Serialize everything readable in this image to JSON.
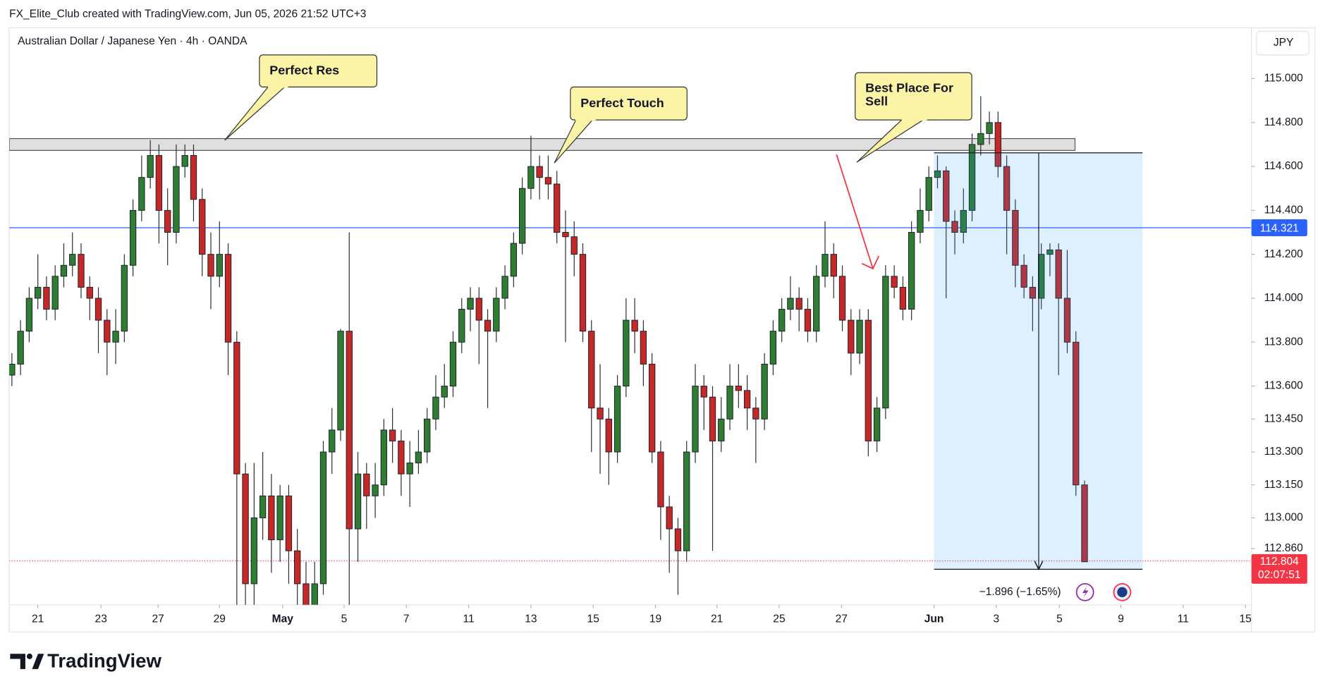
{
  "header": "FX_Elite_Club created with TradingView.com, Jun 05, 2026 21:52 UTC+3",
  "brand": "TradingView",
  "chart_data": {
    "type": "candlestick",
    "title": "Australian Dollar / Japanese Yen · 4h · OANDA",
    "currency": "JPY",
    "up_color": "#2e7d32",
    "down_color": "#c62828",
    "grid": false,
    "open": [
      113.65,
      113.7,
      113.85,
      114.0,
      114.05,
      113.95,
      114.1,
      114.15,
      114.2,
      114.05,
      114.0,
      113.9,
      113.8,
      113.85,
      114.15,
      114.4,
      114.55,
      114.65,
      114.4,
      114.3,
      114.6,
      114.65,
      114.45,
      114.2,
      114.1,
      114.2,
      113.8,
      113.2,
      112.7,
      113.0,
      113.1,
      112.9,
      113.1,
      112.85,
      112.7,
      112.6,
      112.7,
      113.3,
      113.4,
      113.85,
      112.95,
      113.2,
      113.1,
      113.15,
      113.4,
      113.35,
      113.2,
      113.25,
      113.3,
      113.45,
      113.55,
      113.6,
      113.8,
      113.95,
      114.0,
      113.9,
      113.85,
      114.0,
      114.1,
      114.25,
      114.5,
      114.6,
      114.55,
      114.52,
      114.3,
      114.28,
      114.2,
      113.85,
      113.5,
      113.45,
      113.3,
      113.6,
      113.9,
      113.85,
      113.7,
      113.3,
      113.05,
      112.95,
      112.85,
      113.3,
      113.6,
      113.55,
      113.35,
      113.45,
      113.6,
      113.58,
      113.5,
      113.45,
      113.7,
      113.85,
      113.95,
      114.0,
      113.95,
      113.85,
      114.1,
      114.2,
      114.1,
      113.9,
      113.75,
      113.9,
      113.35,
      113.5,
      114.1,
      114.05,
      113.95,
      114.3,
      114.4,
      114.55,
      114.58,
      114.35,
      114.3,
      114.4,
      114.7,
      114.75,
      114.8,
      114.6,
      114.4,
      114.15,
      114.05,
      114.0,
      114.2,
      114.22,
      114.0,
      113.8,
      113.15
    ],
    "high": [
      113.75,
      113.9,
      114.05,
      114.2,
      114.1,
      114.15,
      114.25,
      114.3,
      114.25,
      114.1,
      114.05,
      113.95,
      113.95,
      114.2,
      114.45,
      114.65,
      114.72,
      114.7,
      114.5,
      114.7,
      114.7,
      114.7,
      114.5,
      114.3,
      114.35,
      114.25,
      113.85,
      113.25,
      113.25,
      113.3,
      113.2,
      113.15,
      113.15,
      112.95,
      112.8,
      112.8,
      113.35,
      113.5,
      113.86,
      114.3,
      113.3,
      113.25,
      113.25,
      113.45,
      113.5,
      113.4,
      113.35,
      113.4,
      113.5,
      113.65,
      113.7,
      113.85,
      114.0,
      114.05,
      114.05,
      113.95,
      114.05,
      114.15,
      114.3,
      114.55,
      114.74,
      114.65,
      114.65,
      114.58,
      114.4,
      114.35,
      114.25,
      113.9,
      113.7,
      113.5,
      113.65,
      114.0,
      114.0,
      113.9,
      113.75,
      113.35,
      113.1,
      113.0,
      113.35,
      113.7,
      113.65,
      113.6,
      113.55,
      113.7,
      113.7,
      113.65,
      113.55,
      113.75,
      113.9,
      114.0,
      114.1,
      114.05,
      114.0,
      114.15,
      114.35,
      114.25,
      114.15,
      113.95,
      113.95,
      113.95,
      113.55,
      114.15,
      114.15,
      114.1,
      114.35,
      114.5,
      114.6,
      114.65,
      114.6,
      114.4,
      114.5,
      114.75,
      114.92,
      114.85,
      114.85,
      114.65,
      114.45,
      114.2,
      114.1,
      114.25,
      114.25,
      114.25,
      114.22,
      113.85,
      113.17
    ],
    "low": [
      113.6,
      113.65,
      113.8,
      113.95,
      113.9,
      113.9,
      114.05,
      114.1,
      114.0,
      113.9,
      113.75,
      113.65,
      113.7,
      113.8,
      114.1,
      114.35,
      114.5,
      114.25,
      114.15,
      114.25,
      114.55,
      114.35,
      114.1,
      113.95,
      114.05,
      113.65,
      112.5,
      112.5,
      112.6,
      112.9,
      112.75,
      112.8,
      112.7,
      112.55,
      112.5,
      112.5,
      112.65,
      113.2,
      113.35,
      112.6,
      112.8,
      112.95,
      113.0,
      113.1,
      113.25,
      113.1,
      113.05,
      113.2,
      113.25,
      113.4,
      113.5,
      113.55,
      113.75,
      113.85,
      113.7,
      113.5,
      113.8,
      113.95,
      114.05,
      114.2,
      114.45,
      114.45,
      114.45,
      114.25,
      113.8,
      114.1,
      113.8,
      113.3,
      113.2,
      113.15,
      113.25,
      113.55,
      113.75,
      113.6,
      113.25,
      112.9,
      112.75,
      112.65,
      112.8,
      113.25,
      113.4,
      112.85,
      113.3,
      113.4,
      113.5,
      113.4,
      113.25,
      113.4,
      113.65,
      113.8,
      113.9,
      113.85,
      113.8,
      113.8,
      114.05,
      114.0,
      113.85,
      113.65,
      113.7,
      113.28,
      113.3,
      113.45,
      114.0,
      113.9,
      113.9,
      114.25,
      114.35,
      114.5,
      114.0,
      114.2,
      114.25,
      114.35,
      114.65,
      114.7,
      114.55,
      114.2,
      114.05,
      114.0,
      113.85,
      113.95,
      114.1,
      113.65,
      113.75,
      113.1,
      112.8
    ],
    "close": [
      113.7,
      113.85,
      114.0,
      114.05,
      113.95,
      114.1,
      114.15,
      114.2,
      114.05,
      114.0,
      113.9,
      113.8,
      113.85,
      114.15,
      114.4,
      114.55,
      114.65,
      114.4,
      114.3,
      114.6,
      114.65,
      114.45,
      114.2,
      114.1,
      114.2,
      113.8,
      113.2,
      112.7,
      113.0,
      113.1,
      112.9,
      113.1,
      112.85,
      112.7,
      112.6,
      112.7,
      113.3,
      113.4,
      113.85,
      112.95,
      113.2,
      113.1,
      113.15,
      113.4,
      113.35,
      113.2,
      113.25,
      113.3,
      113.45,
      113.55,
      113.6,
      113.8,
      113.95,
      114.0,
      113.9,
      113.85,
      114.0,
      114.1,
      114.25,
      114.5,
      114.6,
      114.55,
      114.52,
      114.3,
      114.28,
      114.2,
      113.85,
      113.5,
      113.45,
      113.3,
      113.6,
      113.9,
      113.85,
      113.7,
      113.3,
      113.05,
      112.95,
      112.85,
      113.3,
      113.6,
      113.55,
      113.35,
      113.45,
      113.6,
      113.58,
      113.5,
      113.45,
      113.7,
      113.85,
      113.95,
      114.0,
      113.95,
      113.85,
      114.1,
      114.2,
      114.1,
      113.9,
      113.75,
      113.9,
      113.35,
      113.5,
      114.1,
      114.05,
      113.95,
      114.3,
      114.4,
      114.55,
      114.58,
      114.35,
      114.3,
      114.4,
      114.7,
      114.75,
      114.8,
      114.6,
      114.4,
      114.15,
      114.05,
      114.0,
      114.2,
      114.22,
      114.0,
      113.8,
      113.15,
      112.8
    ],
    "xlim": [
      -0.3,
      143.2
    ],
    "xticks": [
      {
        "value": 3.0,
        "label": "21"
      },
      {
        "value": 10.3,
        "label": "23"
      },
      {
        "value": 16.9,
        "label": "27"
      },
      {
        "value": 24.0,
        "label": "29"
      },
      {
        "value": 31.3,
        "label": "May"
      },
      {
        "value": 38.4,
        "label": "5"
      },
      {
        "value": 45.6,
        "label": "7"
      },
      {
        "value": 52.8,
        "label": "11"
      },
      {
        "value": 60.0,
        "label": "13"
      },
      {
        "value": 67.2,
        "label": "15"
      },
      {
        "value": 74.4,
        "label": "19"
      },
      {
        "value": 81.5,
        "label": "21"
      },
      {
        "value": 88.7,
        "label": "25"
      },
      {
        "value": 95.9,
        "label": "27"
      },
      {
        "value": 106.6,
        "label": "Jun"
      },
      {
        "value": 113.8,
        "label": "3"
      },
      {
        "value": 121.1,
        "label": "5"
      },
      {
        "value": 128.2,
        "label": "9"
      },
      {
        "value": 135.4,
        "label": "11"
      },
      {
        "value": 142.6,
        "label": "15"
      }
    ],
    "ylim": [
      112.604,
      115.231
    ],
    "yticks": [
      {
        "value": 115,
        "label": "115.000"
      },
      {
        "value": 114.8,
        "label": "114.800"
      },
      {
        "value": 114.6,
        "label": "114.600"
      },
      {
        "value": 114.4,
        "label": "114.400"
      },
      {
        "value": 114.2,
        "label": "114.200"
      },
      {
        "value": 114,
        "label": "114.000"
      },
      {
        "value": 113.8,
        "label": "113.800"
      },
      {
        "value": 113.6,
        "label": "113.600"
      },
      {
        "value": 113.45,
        "label": "113.450"
      },
      {
        "value": 113.3,
        "label": "113.300"
      },
      {
        "value": 113.15,
        "label": "113.150"
      },
      {
        "value": 113,
        "label": "113.000"
      },
      {
        "value": 112.86,
        "label": "112.860"
      }
    ],
    "annotations": [
      {
        "text": "Perfect Res"
      },
      {
        "text": "Perfect Touch"
      },
      {
        "lines": [
          "Best Place For",
          "Sell"
        ]
      }
    ],
    "zone": {
      "low": 114.673,
      "high": 114.727,
      "x_end": 122.9
    },
    "hline": {
      "value": 114.321,
      "color": "#2962ff"
    },
    "last_price": {
      "value": 112.804,
      "countdown": "02:07:51",
      "color": "#f23645"
    },
    "measure": {
      "top": 114.662,
      "bottom": 112.766,
      "x_start": 106.6,
      "x_end": 130.7,
      "x_arrow": 118.7,
      "label": "−1.896 (−1.65%)"
    }
  }
}
